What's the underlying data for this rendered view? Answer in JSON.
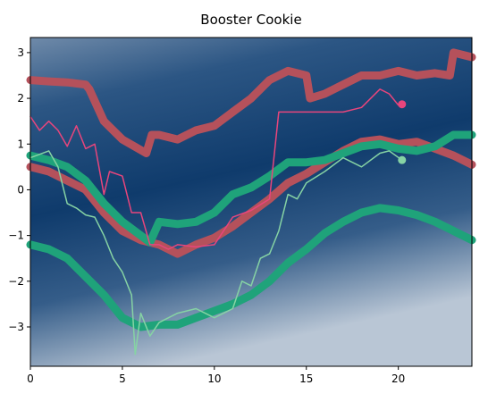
{
  "chart_data": {
    "type": "line",
    "title": "Booster Cookie",
    "xlim": [
      0,
      24
    ],
    "ylim": [
      -3.86,
      3.33
    ],
    "xticks": [
      0,
      5,
      10,
      15,
      20
    ],
    "yticks": [
      {
        "value": -3,
        "label": "−3"
      },
      {
        "value": -2,
        "label": "−2"
      },
      {
        "value": -1,
        "label": "−1"
      },
      0,
      1,
      2,
      3
    ],
    "series": [
      {
        "color": "#b5515b",
        "linewidth": 9,
        "x": [
          0,
          1,
          2,
          3,
          3.2,
          4,
          5,
          6.3,
          6.6,
          7,
          8,
          9,
          10,
          11,
          12,
          13,
          14,
          15,
          15.2,
          16,
          17,
          18,
          19,
          20,
          21,
          22,
          22.8,
          23,
          24
        ],
        "values": [
          2.4,
          2.37,
          2.35,
          2.3,
          2.2,
          1.5,
          1.1,
          0.8,
          1.2,
          1.2,
          1.1,
          1.3,
          1.4,
          1.7,
          2.0,
          2.4,
          2.6,
          2.5,
          2.0,
          2.1,
          2.3,
          2.5,
          2.5,
          2.6,
          2.5,
          2.55,
          2.5,
          3.0,
          2.9
        ]
      },
      {
        "color": "#b5515b",
        "linewidth": 9,
        "x": [
          0,
          1,
          2,
          3,
          4,
          5,
          6,
          7,
          8,
          9,
          10,
          11,
          12,
          13,
          14,
          15,
          16,
          17,
          18,
          19,
          20,
          21,
          22,
          23,
          24
        ],
        "values": [
          0.5,
          0.4,
          0.2,
          0,
          -0.5,
          -0.9,
          -1.1,
          -1.2,
          -1.4,
          -1.2,
          -1.05,
          -0.8,
          -0.5,
          -0.2,
          0.15,
          0.35,
          0.6,
          0.85,
          1.05,
          1.1,
          1.0,
          1.05,
          0.9,
          0.75,
          0.55
        ]
      },
      {
        "color": "#1fa37a",
        "linewidth": 9,
        "x": [
          0,
          1,
          2,
          3,
          4,
          5,
          6,
          6.5,
          7,
          8,
          9,
          10,
          11,
          12,
          13,
          14,
          15,
          16,
          17,
          18,
          19,
          20,
          21,
          22,
          23,
          24
        ],
        "values": [
          0.75,
          0.65,
          0.5,
          0.2,
          -0.3,
          -0.7,
          -1.0,
          -1.15,
          -0.7,
          -0.75,
          -0.7,
          -0.5,
          -0.1,
          0.05,
          0.3,
          0.6,
          0.6,
          0.65,
          0.8,
          0.95,
          1.0,
          0.9,
          0.85,
          0.95,
          1.2,
          1.2
        ]
      },
      {
        "color": "#1fa37a",
        "linewidth": 9,
        "x": [
          0,
          1,
          2,
          3,
          4,
          5,
          6,
          7,
          8,
          9,
          10,
          11,
          12,
          13,
          14,
          15,
          16,
          17,
          18,
          19,
          20,
          21,
          22,
          23,
          24
        ],
        "values": [
          -1.2,
          -1.3,
          -1.5,
          -1.9,
          -2.3,
          -2.8,
          -3.0,
          -2.95,
          -2.95,
          -2.8,
          -2.65,
          -2.5,
          -2.3,
          -2.0,
          -1.6,
          -1.3,
          -0.95,
          -0.7,
          -0.5,
          -0.4,
          -0.45,
          -0.55,
          -0.7,
          -0.9,
          -1.1
        ]
      },
      {
        "color": "#e8457c",
        "linewidth": 1.5,
        "end_marker": true,
        "x": [
          0,
          0.5,
          1,
          1.5,
          2,
          2.5,
          3,
          3.5,
          4,
          4.3,
          5,
          5.5,
          6,
          6.5,
          7,
          7.5,
          8,
          9,
          10,
          11,
          12,
          13,
          13.5,
          14,
          15,
          16,
          17,
          18,
          19,
          19.5,
          20,
          20.2
        ],
        "values": [
          1.6,
          1.3,
          1.5,
          1.3,
          0.95,
          1.4,
          0.9,
          1.0,
          -0.1,
          0.4,
          0.3,
          -0.5,
          -0.5,
          -1.2,
          -1.2,
          -1.3,
          -1.2,
          -1.25,
          -1.2,
          -0.6,
          -0.45,
          -0.2,
          1.7,
          1.7,
          1.7,
          1.7,
          1.7,
          1.8,
          2.2,
          2.1,
          1.85,
          1.87
        ]
      },
      {
        "color": "#86d3a4",
        "linewidth": 1.5,
        "end_marker": true,
        "x": [
          0,
          1,
          1.5,
          2,
          2.5,
          3,
          3.5,
          4,
          4.5,
          5,
          5.5,
          5.7,
          6,
          6.5,
          7,
          8,
          9,
          10,
          11,
          11.5,
          12,
          12.5,
          13,
          13.5,
          14,
          14.5,
          15,
          16,
          17,
          18,
          19,
          19.5,
          20.2
        ],
        "values": [
          0.7,
          0.85,
          0.5,
          -0.3,
          -0.4,
          -0.55,
          -0.6,
          -1.0,
          -1.5,
          -1.8,
          -2.3,
          -3.6,
          -2.7,
          -3.2,
          -2.9,
          -2.7,
          -2.6,
          -2.8,
          -2.6,
          -2.0,
          -2.1,
          -1.5,
          -1.4,
          -0.9,
          -0.1,
          -0.2,
          0.15,
          0.4,
          0.7,
          0.5,
          0.8,
          0.85,
          0.65
        ]
      }
    ]
  }
}
